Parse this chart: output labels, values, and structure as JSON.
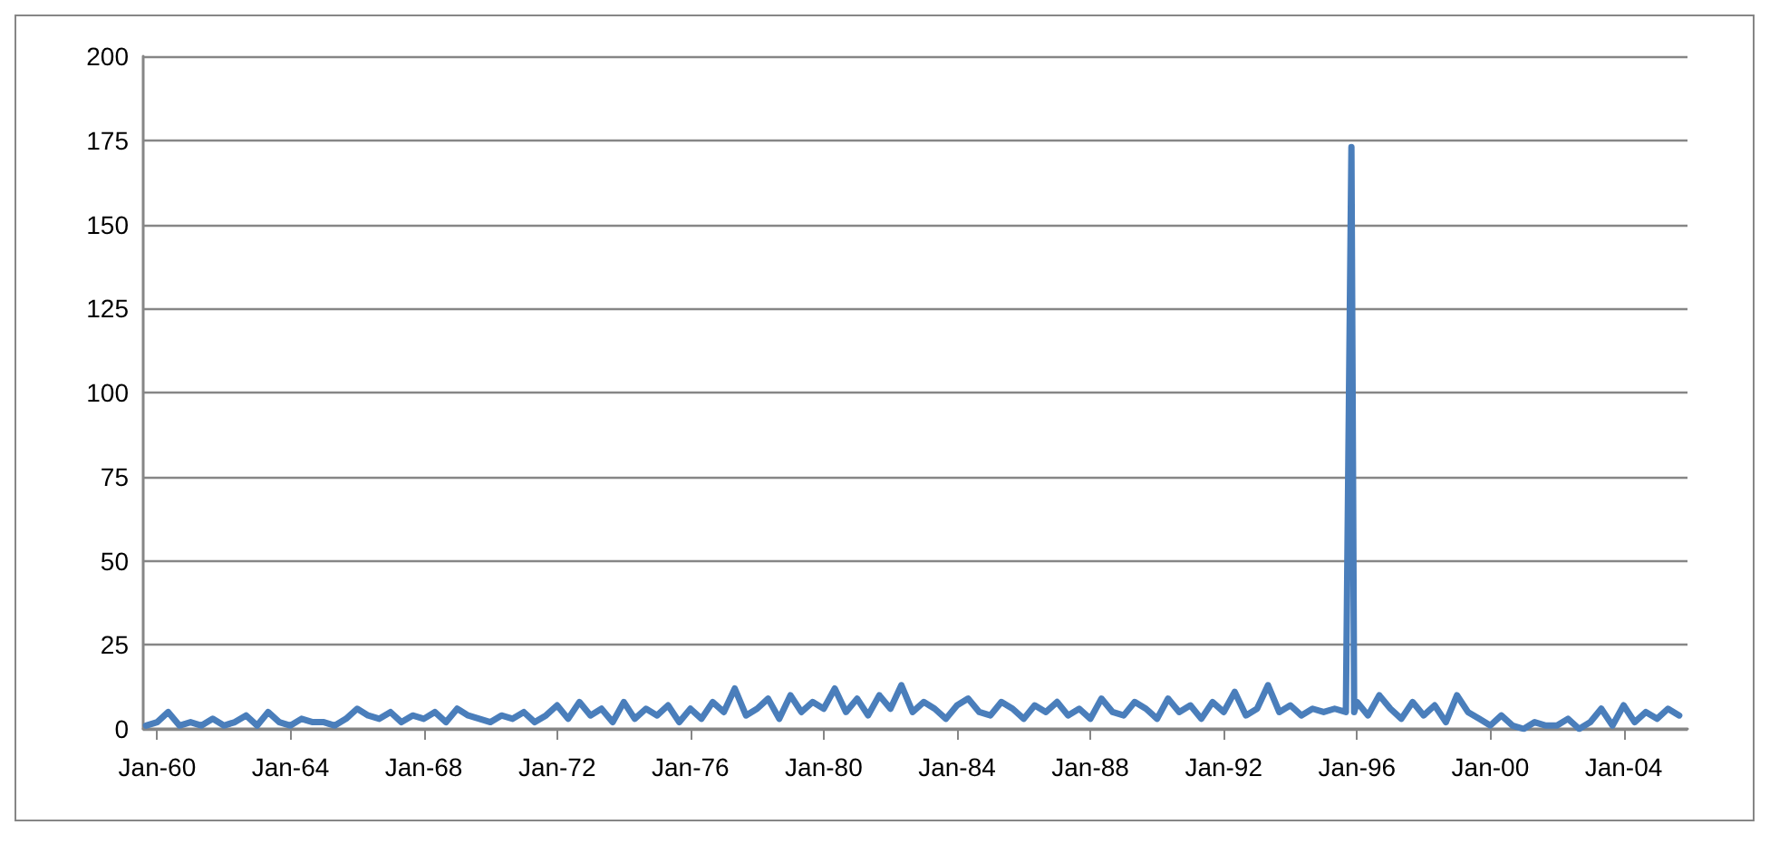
{
  "chart_data": {
    "type": "line",
    "grid": "y",
    "marker": "none",
    "line_style": "solid",
    "xlim": [
      "1959-08",
      "2005-12"
    ],
    "xticks": [
      {
        "value": "1960-01",
        "label": "Jan-60"
      },
      {
        "value": "1964-01",
        "label": "Jan-64"
      },
      {
        "value": "1968-01",
        "label": "Jan-68"
      },
      {
        "value": "1972-01",
        "label": "Jan-72"
      },
      {
        "value": "1976-01",
        "label": "Jan-76"
      },
      {
        "value": "1980-01",
        "label": "Jan-80"
      },
      {
        "value": "1984-01",
        "label": "Jan-84"
      },
      {
        "value": "1988-01",
        "label": "Jan-88"
      },
      {
        "value": "1992-01",
        "label": "Jan-92"
      },
      {
        "value": "1996-01",
        "label": "Jan-96"
      },
      {
        "value": "2000-01",
        "label": "Jan-00"
      },
      {
        "value": "2004-01",
        "label": "Jan-04"
      }
    ],
    "ylim": [
      0,
      200
    ],
    "yticks": [
      0,
      25,
      50,
      75,
      100,
      125,
      150,
      175,
      200
    ],
    "series": [
      {
        "color": "#4a7ebb",
        "x": [
          "1959-09",
          "1960-01",
          "1960-05",
          "1960-09",
          "1961-01",
          "1961-05",
          "1961-09",
          "1962-01",
          "1962-05",
          "1962-09",
          "1963-01",
          "1963-05",
          "1963-09",
          "1964-01",
          "1964-05",
          "1964-09",
          "1965-01",
          "1965-05",
          "1965-09",
          "1966-01",
          "1966-05",
          "1966-09",
          "1967-01",
          "1967-05",
          "1967-09",
          "1968-01",
          "1968-05",
          "1968-09",
          "1969-01",
          "1969-05",
          "1969-09",
          "1970-01",
          "1970-05",
          "1970-09",
          "1971-01",
          "1971-05",
          "1971-09",
          "1972-01",
          "1972-05",
          "1972-09",
          "1973-01",
          "1973-05",
          "1973-09",
          "1974-01",
          "1974-05",
          "1974-09",
          "1975-01",
          "1975-05",
          "1975-09",
          "1976-01",
          "1976-05",
          "1976-09",
          "1977-01",
          "1977-05",
          "1977-09",
          "1978-01",
          "1978-05",
          "1978-09",
          "1979-01",
          "1979-05",
          "1979-09",
          "1980-01",
          "1980-05",
          "1980-09",
          "1981-01",
          "1981-05",
          "1981-09",
          "1982-01",
          "1982-05",
          "1982-09",
          "1983-01",
          "1983-05",
          "1983-09",
          "1984-01",
          "1984-05",
          "1984-09",
          "1985-01",
          "1985-05",
          "1985-09",
          "1986-01",
          "1986-05",
          "1986-09",
          "1987-01",
          "1987-05",
          "1987-09",
          "1988-01",
          "1988-05",
          "1988-09",
          "1989-01",
          "1989-05",
          "1989-09",
          "1990-01",
          "1990-05",
          "1990-09",
          "1991-01",
          "1991-05",
          "1991-09",
          "1992-01",
          "1992-05",
          "1992-09",
          "1993-01",
          "1993-05",
          "1993-09",
          "1994-01",
          "1994-05",
          "1994-09",
          "1995-01",
          "1995-05",
          "1995-09",
          "1995-11",
          "1995-12",
          "1996-01",
          "1996-05",
          "1996-09",
          "1997-01",
          "1997-05",
          "1997-09",
          "1998-01",
          "1998-05",
          "1998-09",
          "1999-01",
          "1999-05",
          "1999-09",
          "2000-01",
          "2000-05",
          "2000-09",
          "2001-01",
          "2001-05",
          "2001-09",
          "2002-01",
          "2002-05",
          "2002-09",
          "2003-01",
          "2003-05",
          "2003-09",
          "2004-01",
          "2004-05",
          "2004-09",
          "2005-01",
          "2005-05",
          "2005-09"
        ],
        "values": [
          1,
          2,
          5,
          1,
          2,
          1,
          3,
          1,
          2,
          4,
          1,
          5,
          2,
          1,
          3,
          2,
          2,
          1,
          3,
          6,
          4,
          3,
          5,
          2,
          4,
          3,
          5,
          2,
          6,
          4,
          3,
          2,
          4,
          3,
          5,
          2,
          4,
          7,
          3,
          8,
          4,
          6,
          2,
          8,
          3,
          6,
          4,
          7,
          2,
          6,
          3,
          8,
          5,
          12,
          4,
          6,
          9,
          3,
          10,
          5,
          8,
          6,
          12,
          5,
          9,
          4,
          10,
          6,
          13,
          5,
          8,
          6,
          3,
          7,
          9,
          5,
          4,
          8,
          6,
          3,
          7,
          5,
          8,
          4,
          6,
          3,
          9,
          5,
          4,
          8,
          6,
          3,
          9,
          5,
          7,
          3,
          8,
          5,
          11,
          4,
          6,
          13,
          5,
          7,
          4,
          6,
          5,
          6,
          5,
          173,
          5,
          8,
          4,
          10,
          6,
          3,
          8,
          4,
          7,
          2,
          10,
          5,
          3,
          1,
          4,
          1,
          0,
          2,
          1,
          1,
          3,
          0,
          2,
          6,
          1,
          7,
          2,
          5,
          3,
          6,
          4
        ]
      }
    ]
  }
}
